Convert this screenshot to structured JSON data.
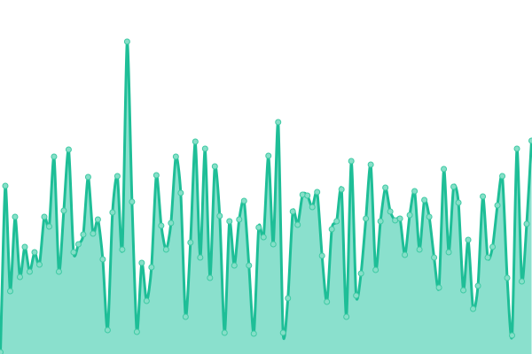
{
  "chart_data": {
    "type": "area",
    "title": "",
    "xlabel": "",
    "ylabel": "",
    "ylim": [
      0,
      400
    ],
    "grid": false,
    "legend": "none",
    "colors": {
      "line": "#1ebe97",
      "fill": "#8ae0cd",
      "marker_fill": "#86dfc8",
      "marker_stroke": "#3fcaa4"
    },
    "values": [
      2,
      190,
      71,
      155,
      87,
      121,
      93,
      115,
      101,
      155,
      144,
      223,
      93,
      162,
      231,
      115,
      124,
      135,
      200,
      136,
      152,
      107,
      27,
      160,
      201,
      118,
      353,
      172,
      25,
      103,
      60,
      98,
      202,
      145,
      118,
      148,
      223,
      182,
      42,
      126,
      240,
      109,
      232,
      86,
      212,
      156,
      24,
      150,
      100,
      152,
      173,
      100,
      23,
      143,
      132,
      224,
      124,
      262,
      24,
      63,
      161,
      146,
      180,
      179,
      166,
      183,
      111,
      59,
      141,
      150,
      186,
      42,
      218,
      66,
      91,
      153,
      214,
      95,
      150,
      188,
      161,
      151,
      153,
      112,
      157,
      184,
      118,
      174,
      155,
      109,
      75,
      209,
      115,
      189,
      171,
      72,
      129,
      51,
      77,
      178,
      109,
      121,
      168,
      201,
      86,
      21,
      232,
      82,
      147,
      241
    ]
  }
}
